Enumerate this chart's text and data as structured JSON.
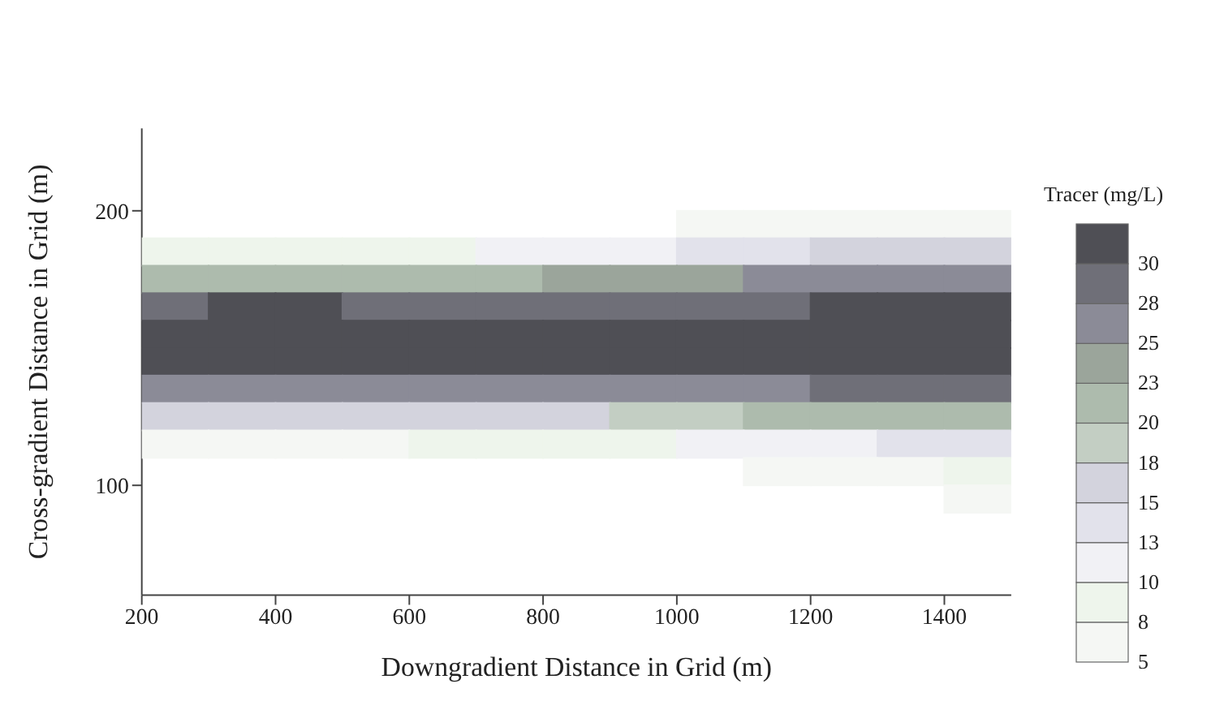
{
  "chart_data": {
    "type": "scatter",
    "marker": "square",
    "xlabel": "Downgradient Distance in Grid (m)",
    "ylabel": "Cross-gradient Distance in Grid (m)",
    "clabel": "Tracer (mg/L)",
    "x": [
      1050,
      1150,
      1250,
      1350,
      1450,
      250,
      350,
      450,
      550,
      650,
      750,
      850,
      950,
      1050,
      1150,
      1250,
      1350,
      1450,
      250,
      350,
      450,
      550,
      650,
      750,
      850,
      950,
      1050,
      1150,
      1250,
      1350,
      1450,
      250,
      350,
      450,
      550,
      650,
      750,
      850,
      950,
      1050,
      1150,
      1250,
      1350,
      1450,
      250,
      350,
      450,
      550,
      650,
      750,
      850,
      950,
      1050,
      1150,
      1250,
      1350,
      1450,
      250,
      350,
      450,
      550,
      650,
      750,
      850,
      950,
      1050,
      1150,
      1250,
      1350,
      1450,
      250,
      350,
      450,
      550,
      650,
      750,
      850,
      950,
      1050,
      1150,
      1250,
      1350,
      1450,
      250,
      350,
      450,
      550,
      650,
      750,
      850,
      950,
      1050,
      1150,
      1250,
      1350,
      1450,
      250,
      350,
      450,
      550,
      650,
      750,
      850,
      950,
      1050,
      1150,
      1250,
      1350,
      1450,
      1150,
      1250,
      1350,
      1450,
      1450
    ],
    "values": [
      195,
      195,
      195,
      195,
      195,
      185,
      185,
      185,
      185,
      185,
      185,
      185,
      185,
      185,
      185,
      185,
      185,
      185,
      175,
      175,
      175,
      175,
      175,
      175,
      175,
      175,
      175,
      175,
      175,
      175,
      175,
      165,
      165,
      165,
      165,
      165,
      165,
      165,
      165,
      165,
      165,
      165,
      165,
      165,
      155,
      155,
      155,
      155,
      155,
      155,
      155,
      155,
      155,
      155,
      155,
      155,
      155,
      145,
      145,
      145,
      145,
      145,
      145,
      145,
      145,
      145,
      145,
      145,
      145,
      145,
      135,
      135,
      135,
      135,
      135,
      135,
      135,
      135,
      135,
      135,
      135,
      135,
      135,
      125,
      125,
      125,
      125,
      125,
      125,
      125,
      125,
      125,
      125,
      125,
      125,
      125,
      115,
      115,
      115,
      115,
      115,
      115,
      115,
      115,
      115,
      115,
      115,
      115,
      115,
      105,
      105,
      105,
      105,
      95
    ],
    "cvalues": [
      5,
      6,
      6,
      7,
      7,
      9,
      9,
      9,
      9,
      9,
      10,
      11,
      12,
      13,
      14,
      15,
      15,
      16,
      20,
      20,
      20,
      20,
      21,
      22,
      23,
      24,
      24,
      25,
      25,
      26,
      26,
      29,
      30,
      30,
      29,
      28,
      28,
      28,
      28,
      29,
      29,
      30,
      30,
      30,
      31,
      31,
      31,
      31,
      30,
      30,
      30,
      30,
      30,
      30,
      31,
      31,
      31,
      31,
      31,
      31,
      30,
      30,
      30,
      30,
      30,
      30,
      30,
      31,
      31,
      31,
      27,
      27,
      27,
      26,
      26,
      26,
      26,
      26,
      26,
      27,
      28,
      28,
      28,
      15,
      15,
      16,
      16,
      17,
      17,
      17,
      18,
      19,
      20,
      21,
      21,
      22,
      6,
      6,
      7,
      7,
      8,
      8,
      8,
      9,
      10,
      11,
      12,
      13,
      14,
      5,
      6,
      7,
      8,
      5
    ],
    "xlim": [
      200,
      1500
    ],
    "xticks": [
      200,
      400,
      600,
      800,
      1000,
      1200,
      1400
    ],
    "ylim": [
      60,
      230
    ],
    "yticks": [
      100,
      200
    ],
    "clim": [
      5,
      32.5
    ],
    "cticks": [
      5,
      {
        "value": 7.5,
        "label": "8"
      },
      10,
      {
        "value": 12.5,
        "label": "13"
      },
      15,
      {
        "value": 17.5,
        "label": "18"
      },
      20,
      {
        "value": 22.5,
        "label": "23"
      },
      25,
      {
        "value": 27.5,
        "label": "28"
      },
      30
    ],
    "colors": [
      "#f5f7f4",
      "#f5f7f4",
      "#f5f7f4",
      "#f5f7f4",
      "#f5f7f4",
      "#eef5ec",
      "#eef5ec",
      "#eef5ec",
      "#eef5ec",
      "#eef5ec",
      "#f1f1f5",
      "#f1f1f5",
      "#f1f1f5",
      "#e2e2eb",
      "#e2e2eb",
      "#d3d3dd",
      "#d3d3dd",
      "#d3d3dd",
      "#adbbad",
      "#adbbad",
      "#adbbad",
      "#adbbad",
      "#adbbad",
      "#adbbad",
      "#9ba59b",
      "#9ba59b",
      "#9ba59b",
      "#8b8b97",
      "#8b8b97",
      "#8b8b97",
      "#8b8b97",
      "#6f6f78",
      "#4f4f55",
      "#4f4f55",
      "#6f6f78",
      "#6f6f78",
      "#6f6f78",
      "#6f6f78",
      "#6f6f78",
      "#6f6f78",
      "#6f6f78",
      "#4f4f55",
      "#4f4f55",
      "#4f4f55",
      "#4f4f55",
      "#4f4f55",
      "#4f4f55",
      "#4f4f55",
      "#4f4f55",
      "#4f4f55",
      "#4f4f55",
      "#4f4f55",
      "#4f4f55",
      "#4f4f55",
      "#4f4f55",
      "#4f4f55",
      "#4f4f55",
      "#4f4f55",
      "#4f4f55",
      "#4f4f55",
      "#4f4f55",
      "#4f4f55",
      "#4f4f55",
      "#4f4f55",
      "#4f4f55",
      "#4f4f55",
      "#4f4f55",
      "#4f4f55",
      "#4f4f55",
      "#4f4f55",
      "#8b8b97",
      "#8b8b97",
      "#8b8b97",
      "#8b8b97",
      "#8b8b97",
      "#8b8b97",
      "#8b8b97",
      "#8b8b97",
      "#8b8b97",
      "#8b8b97",
      "#6f6f78",
      "#6f6f78",
      "#6f6f78",
      "#d3d3dd",
      "#d3d3dd",
      "#d3d3dd",
      "#d3d3dd",
      "#d3d3dd",
      "#d3d3dd",
      "#d3d3dd",
      "#c3cec3",
      "#c3cec3",
      "#adbbad",
      "#adbbad",
      "#adbbad",
      "#adbbad",
      "#f5f7f4",
      "#f5f7f4",
      "#f5f7f4",
      "#f5f7f4",
      "#eef5ec",
      "#eef5ec",
      "#eef5ec",
      "#eef5ec",
      "#f1f1f5",
      "#f1f1f5",
      "#f1f1f5",
      "#e2e2eb",
      "#e2e2eb",
      "#f5f7f4",
      "#f5f7f4",
      "#f5f7f4",
      "#eef5ec",
      "#f5f7f4"
    ]
  }
}
